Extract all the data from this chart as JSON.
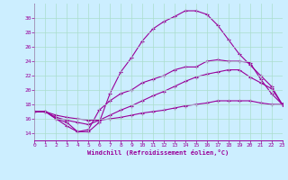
{
  "background_color": "#cceeff",
  "grid_color": "#aaddcc",
  "line_color": "#990099",
  "xlabel": "Windchill (Refroidissement éolien,°C)",
  "xlim": [
    0,
    23
  ],
  "ylim": [
    13,
    32
  ],
  "yticks": [
    14,
    16,
    18,
    20,
    22,
    24,
    26,
    28,
    30
  ],
  "xticks": [
    0,
    1,
    2,
    3,
    4,
    5,
    6,
    7,
    8,
    9,
    10,
    11,
    12,
    13,
    14,
    15,
    16,
    17,
    18,
    19,
    20,
    21,
    22,
    23
  ],
  "line1_x": [
    0,
    1,
    2,
    3,
    4,
    5,
    6,
    7,
    8,
    9,
    10,
    11,
    12,
    13,
    14,
    15,
    16,
    17,
    18,
    19,
    20,
    21,
    22,
    23
  ],
  "line1_y": [
    17.0,
    17.0,
    16.0,
    15.5,
    14.2,
    14.5,
    17.2,
    18.5,
    19.5,
    20.0,
    21.0,
    21.5,
    22.0,
    22.8,
    23.2,
    23.2,
    24.0,
    24.2,
    24.0,
    24.0,
    23.8,
    21.5,
    19.5,
    18.0
  ],
  "line2_x": [
    0,
    1,
    2,
    3,
    4,
    5,
    6,
    7,
    8,
    9,
    10,
    11,
    12,
    13,
    14,
    15,
    16,
    17,
    18,
    19,
    20,
    21,
    22,
    23
  ],
  "line2_y": [
    17.0,
    17.0,
    16.2,
    15.8,
    15.5,
    15.2,
    15.8,
    16.5,
    17.2,
    17.8,
    18.5,
    19.2,
    19.8,
    20.5,
    21.2,
    21.8,
    22.2,
    22.5,
    22.8,
    22.8,
    21.8,
    21.0,
    20.2,
    18.0
  ],
  "line3_x": [
    0,
    1,
    2,
    3,
    4,
    5,
    6,
    7,
    8,
    9,
    10,
    11,
    12,
    13,
    14,
    15,
    16,
    17,
    18,
    19,
    20,
    21,
    22,
    23
  ],
  "line3_y": [
    17.0,
    17.0,
    16.0,
    15.0,
    14.2,
    14.2,
    15.5,
    19.5,
    22.5,
    24.5,
    26.8,
    28.5,
    29.5,
    30.2,
    31.0,
    31.0,
    30.5,
    29.0,
    27.0,
    25.0,
    23.5,
    22.0,
    20.5,
    18.0
  ],
  "line4_x": [
    0,
    1,
    2,
    3,
    4,
    5,
    6,
    7,
    8,
    9,
    10,
    11,
    12,
    13,
    14,
    15,
    16,
    17,
    18,
    19,
    20,
    21,
    22,
    23
  ],
  "line4_y": [
    17.0,
    17.0,
    16.5,
    16.2,
    16.0,
    15.8,
    15.8,
    16.0,
    16.2,
    16.5,
    16.8,
    17.0,
    17.2,
    17.5,
    17.8,
    18.0,
    18.2,
    18.5,
    18.5,
    18.5,
    18.5,
    18.2,
    18.0,
    18.0
  ]
}
